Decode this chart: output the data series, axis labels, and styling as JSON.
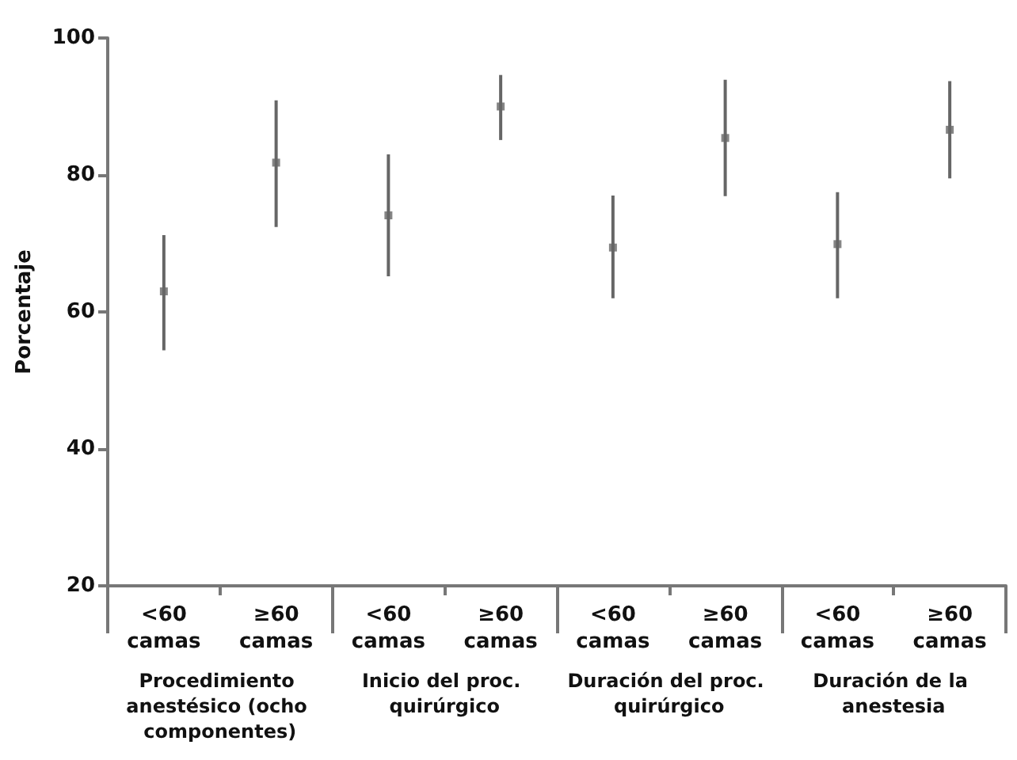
{
  "chart_data": {
    "type": "scatter",
    "ylabel": "Porcentaje",
    "categories": [
      "<60 camas",
      "≥60 camas",
      "<60 camas",
      "≥60 camas",
      "<60 camas",
      "≥60 camas",
      "<60 camas",
      "≥60 camas"
    ],
    "series": [
      {
        "color": "#666666",
        "values": [
          63,
          81.8,
          74.1,
          90,
          69.4,
          85.4,
          69.9,
          86.6
        ],
        "errors": [
          [
            54.4,
            71.2
          ],
          [
            72.4,
            90.9
          ],
          [
            65.2,
            83
          ],
          [
            85.1,
            94.6
          ],
          [
            62,
            77
          ],
          [
            76.9,
            93.9
          ],
          [
            62,
            77.5
          ],
          [
            79.5,
            93.7
          ]
        ]
      }
    ],
    "marker": "square",
    "grid": false,
    "ylim": [
      20,
      100
    ],
    "yticks": [
      20,
      40,
      60,
      80,
      100
    ],
    "annotations": [
      "Procedimiento anestésico (ocho componentes)",
      "Inicio del proc. quirúrgico",
      "Duración del proc. quirúrgico",
      "Duración de la anestesia"
    ]
  }
}
